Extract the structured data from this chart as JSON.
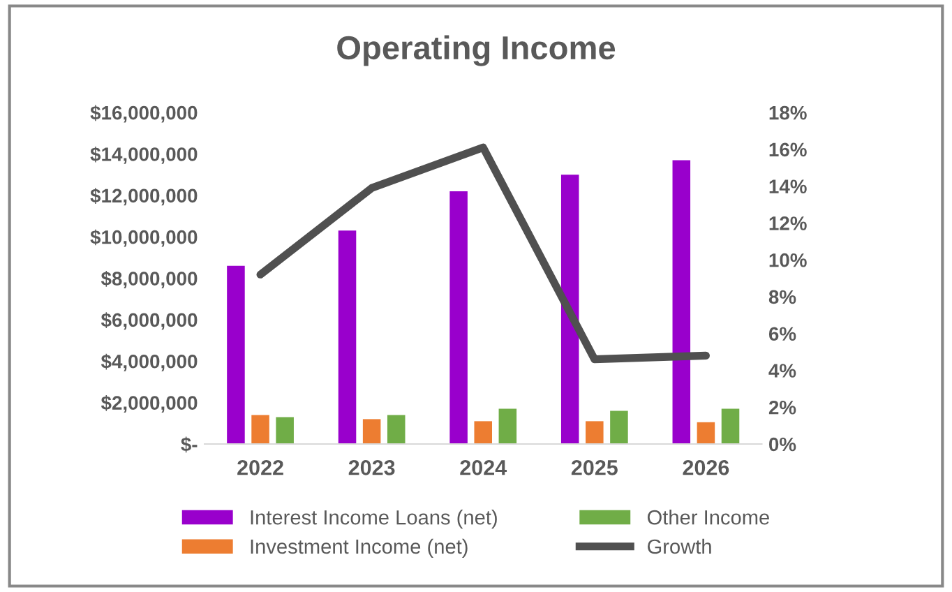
{
  "chart_data": {
    "type": "bar",
    "title": "Operating Income",
    "categories": [
      "2022",
      "2023",
      "2024",
      "2025",
      "2026"
    ],
    "series": [
      {
        "name": "Interest Income Loans (net)",
        "color": "#9900cc",
        "values": [
          8600000,
          10300000,
          12200000,
          13000000,
          13700000
        ]
      },
      {
        "name": "Investment Income (net)",
        "color": "#ed7d31",
        "values": [
          1400000,
          1200000,
          1100000,
          1100000,
          1050000
        ]
      },
      {
        "name": "Other Income",
        "color": "#70ad47",
        "values": [
          1300000,
          1400000,
          1700000,
          1600000,
          1700000
        ]
      },
      {
        "name": "Growth",
        "type": "line",
        "axis": "y2",
        "color": "#505050",
        "values": [
          9.2,
          13.9,
          16.1,
          4.6,
          4.8
        ]
      }
    ],
    "ylim": [
      0,
      16000000
    ],
    "yticks": [
      {
        "value": 0,
        "label": "$-"
      },
      {
        "value": 2000000,
        "label": "$2,000,000"
      },
      {
        "value": 4000000,
        "label": "$4,000,000"
      },
      {
        "value": 6000000,
        "label": "$6,000,000"
      },
      {
        "value": 8000000,
        "label": "$8,000,000"
      },
      {
        "value": 10000000,
        "label": "$10,000,000"
      },
      {
        "value": 12000000,
        "label": "$12,000,000"
      },
      {
        "value": 14000000,
        "label": "$14,000,000"
      },
      {
        "value": 16000000,
        "label": "$16,000,000"
      }
    ],
    "y2lim": [
      0,
      18
    ],
    "y2ticks": [
      {
        "value": 0,
        "label": "0%"
      },
      {
        "value": 2,
        "label": "2%"
      },
      {
        "value": 4,
        "label": "4%"
      },
      {
        "value": 6,
        "label": "6%"
      },
      {
        "value": 8,
        "label": "8%"
      },
      {
        "value": 10,
        "label": "10%"
      },
      {
        "value": 12,
        "label": "12%"
      },
      {
        "value": 14,
        "label": "14%"
      },
      {
        "value": 16,
        "label": "16%"
      },
      {
        "value": 18,
        "label": "18%"
      }
    ],
    "grid": false,
    "legend": "bottom"
  }
}
